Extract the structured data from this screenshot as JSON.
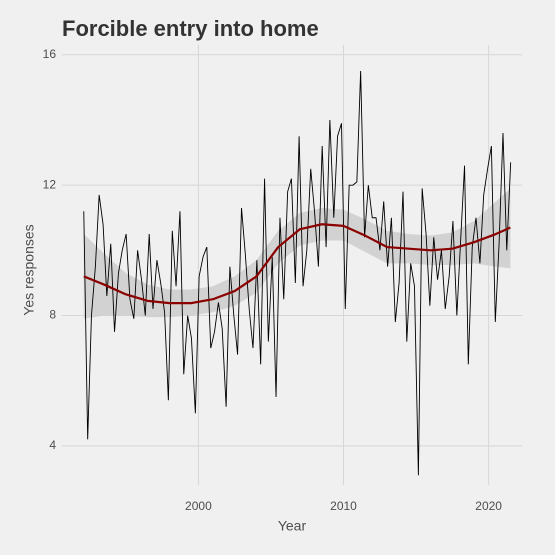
{
  "chart_data": {
    "type": "line",
    "title": "Forcible entry into home",
    "xlabel": "Year",
    "ylabel": "Yes responses",
    "xlim": [
      1990.6,
      2022.3
    ],
    "ylim": [
      2.8,
      16.3
    ],
    "xticks": [
      2000,
      2010,
      2020
    ],
    "yticks": [
      4,
      8,
      12,
      16
    ],
    "grid": true,
    "x": [
      1992.1,
      1992.37,
      1992.63,
      1992.9,
      1993.16,
      1993.43,
      1993.69,
      1993.96,
      1994.22,
      1994.49,
      1994.75,
      1995.02,
      1995.28,
      1995.55,
      1995.81,
      1996.08,
      1996.34,
      1996.61,
      1996.87,
      1997.14,
      1997.4,
      1997.67,
      1997.93,
      1998.2,
      1998.46,
      1998.73,
      1998.99,
      1999.26,
      1999.52,
      1999.79,
      2000.05,
      2000.32,
      2000.58,
      2000.85,
      2001.11,
      2001.38,
      2001.64,
      2001.91,
      2002.17,
      2002.44,
      2002.7,
      2002.97,
      2003.23,
      2003.5,
      2003.76,
      2004.03,
      2004.29,
      2004.56,
      2004.82,
      2005.09,
      2005.35,
      2005.62,
      2005.88,
      2006.15,
      2006.41,
      2006.68,
      2006.94,
      2007.21,
      2007.47,
      2007.74,
      2008.0,
      2008.27,
      2008.53,
      2008.8,
      2009.06,
      2009.33,
      2009.59,
      2009.86,
      2010.12,
      2010.39,
      2010.65,
      2010.92,
      2011.18,
      2011.45,
      2011.71,
      2011.98,
      2012.24,
      2012.51,
      2012.77,
      2013.04,
      2013.3,
      2013.57,
      2013.83,
      2014.1,
      2014.36,
      2014.63,
      2014.89,
      2015.16,
      2015.42,
      2015.69,
      2015.95,
      2016.22,
      2016.48,
      2016.75,
      2017.01,
      2017.28,
      2017.54,
      2017.81,
      2018.07,
      2018.34,
      2018.6,
      2018.87,
      2019.13,
      2019.4,
      2019.66,
      2019.93,
      2020.19,
      2020.46,
      2020.72,
      2020.99,
      2021.25,
      2021.52
    ],
    "series": [
      {
        "color": "#000000",
        "values": [
          11.2,
          4.2,
          8.0,
          9.5,
          11.7,
          10.8,
          8.6,
          10.2,
          7.5,
          9.3,
          10.0,
          10.5,
          8.5,
          7.9,
          10.0,
          9.1,
          8.0,
          10.5,
          8.2,
          9.7,
          9.0,
          8.1,
          5.4,
          10.6,
          8.9,
          11.2,
          6.2,
          8.0,
          7.3,
          5.0,
          9.2,
          9.8,
          10.1,
          7.0,
          7.5,
          8.4,
          7.6,
          5.2,
          9.5,
          8.0,
          6.8,
          11.3,
          9.9,
          8.2,
          7.0,
          9.7,
          6.5,
          12.2,
          7.2,
          9.8,
          5.5,
          11.0,
          8.5,
          11.8,
          12.2,
          9.0,
          13.5,
          8.9,
          10.0,
          12.5,
          11.2,
          9.5,
          13.2,
          10.1,
          14.0,
          11.0,
          13.5,
          13.9,
          8.2,
          12.0,
          12.0,
          12.1,
          15.5,
          10.4,
          12.0,
          11.0,
          11.0,
          10.0,
          11.5,
          9.5,
          11.0,
          7.8,
          9.0,
          11.8,
          7.2,
          9.6,
          8.9,
          3.1,
          11.9,
          10.5,
          8.3,
          10.4,
          9.1,
          10.0,
          8.2,
          9.2,
          10.9,
          8.0,
          10.3,
          12.6,
          6.5,
          10.1,
          11.0,
          9.6,
          11.7,
          12.5,
          13.2,
          7.8,
          10.2,
          13.6,
          10.0,
          12.7
        ]
      }
    ],
    "smooth": {
      "color": "#8b0000",
      "band_color": "#cccccc",
      "x": [
        1992.1,
        1993.5,
        1995,
        1996.5,
        1998,
        1999.5,
        2001,
        2002.5,
        2004,
        2005.5,
        2007,
        2008.5,
        2010,
        2011.5,
        2013,
        2014.5,
        2016,
        2017.5,
        2019,
        2020.5,
        2021.5
      ],
      "values": [
        9.2,
        8.95,
        8.65,
        8.45,
        8.38,
        8.38,
        8.5,
        8.75,
        9.2,
        10.1,
        10.65,
        10.8,
        10.75,
        10.45,
        10.1,
        10.05,
        10.0,
        10.05,
        10.25,
        10.5,
        10.7
      ],
      "lower": [
        7.9,
        8.0,
        8.0,
        7.95,
        7.95,
        8.0,
        8.1,
        8.3,
        8.7,
        9.6,
        10.15,
        10.3,
        10.3,
        9.95,
        9.6,
        9.6,
        9.55,
        9.55,
        9.6,
        9.5,
        9.45
      ],
      "upper": [
        10.5,
        9.9,
        9.3,
        8.95,
        8.8,
        8.8,
        8.9,
        9.2,
        9.7,
        10.6,
        11.15,
        11.3,
        11.25,
        10.95,
        10.6,
        10.5,
        10.45,
        10.55,
        10.9,
        11.5,
        11.9
      ]
    }
  }
}
